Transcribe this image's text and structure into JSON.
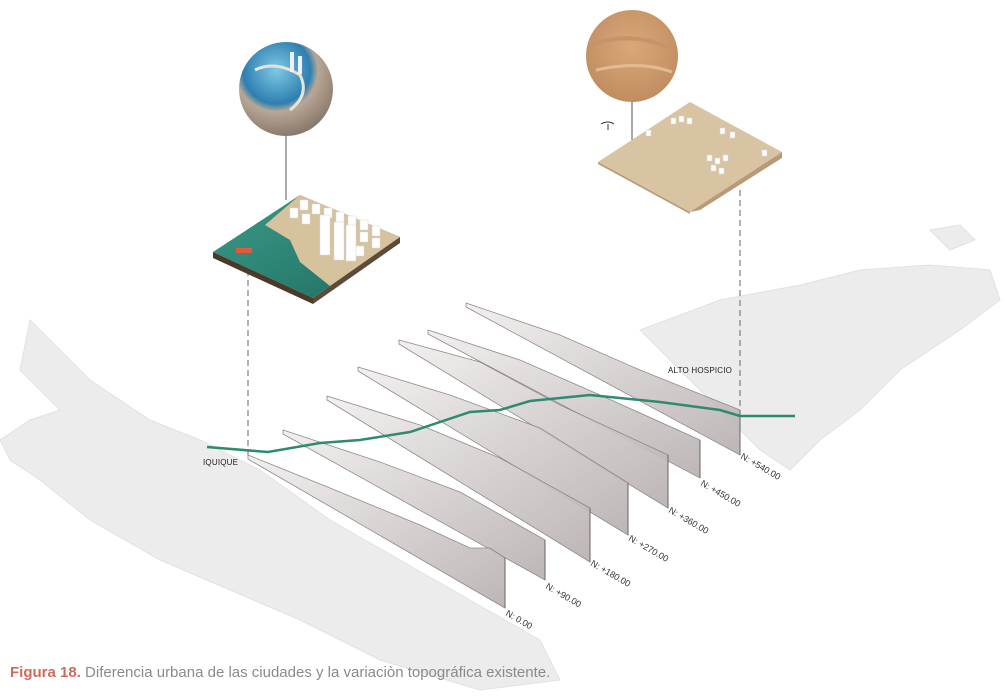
{
  "figure": {
    "caption_number": "Figura 18.",
    "caption_text": " Diferencia urbana de las ciudades y la variaciòn topográfica existente."
  },
  "cities": {
    "left": "IQUIQUE",
    "right": "ALTO HOSPICIO"
  },
  "sections": [
    {
      "label": "N: 0.00"
    },
    {
      "label": "N: +90.00"
    },
    {
      "label": "N: +180.00"
    },
    {
      "label": "N: +270.00"
    },
    {
      "label": "N: +360.00"
    },
    {
      "label": "N: +450.00"
    },
    {
      "label": "N: +540.00"
    }
  ],
  "colors": {
    "profile_line": "#2f8a72",
    "section_panel": "#d9d3d3",
    "sea": "#2f8a7a",
    "sand": "#d8c3a3"
  }
}
